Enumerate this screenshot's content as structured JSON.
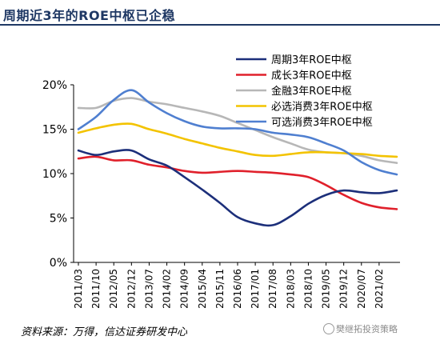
{
  "title": "周期近3年的ROE中枢已企稳",
  "source": "资料来源：万得，信达证券研发中心",
  "watermark": "樊继拓投资策略",
  "colors": {
    "title": "#1f3864",
    "cyclical": "#1c2f7a",
    "growth": "#e0202b",
    "financial": "#b7b7b7",
    "consumer_staples": "#f3c300",
    "consumer_discretionary": "#4f7fd0"
  },
  "chart_data": {
    "type": "line",
    "xlabel": "",
    "ylabel": "",
    "ylim": [
      0,
      20
    ],
    "yticks": [
      0,
      5,
      10,
      15,
      20
    ],
    "ytick_labels": [
      "0%",
      "5%",
      "10%",
      "15%",
      "20%"
    ],
    "grid": false,
    "legend": "top-right",
    "x_start": "2011/03",
    "x_tick_labels": [
      "2011/03",
      "2011/10",
      "2012/05",
      "2012/12",
      "2013/07",
      "2014/02",
      "2014/09",
      "2015/04",
      "2015/11",
      "2016/06",
      "2017/01",
      "2017/08",
      "2018/03",
      "2018/10",
      "2019/05",
      "2019/12",
      "2020/07",
      "2021/02"
    ],
    "x": [
      "2011/03",
      "2011/10",
      "2012/05",
      "2012/12",
      "2013/07",
      "2014/02",
      "2014/09",
      "2015/04",
      "2015/11",
      "2016/06",
      "2017/01",
      "2017/08",
      "2018/03",
      "2018/10",
      "2019/05",
      "2019/12",
      "2020/07",
      "2021/02",
      "2021/06"
    ],
    "series": [
      {
        "name": "周期3年ROE中枢",
        "color_key": "cyclical",
        "values": [
          12.6,
          12.1,
          12.5,
          12.6,
          11.6,
          10.9,
          9.6,
          8.2,
          6.7,
          5.1,
          4.4,
          4.2,
          5.2,
          6.6,
          7.6,
          8.1,
          7.9,
          7.8,
          8.1
        ]
      },
      {
        "name": "成长3年ROE中枢",
        "color_key": "growth",
        "values": [
          11.7,
          11.9,
          11.5,
          11.5,
          11.0,
          10.7,
          10.3,
          10.1,
          10.2,
          10.3,
          10.2,
          10.1,
          9.9,
          9.6,
          8.7,
          7.6,
          6.7,
          6.2,
          6.0
        ]
      },
      {
        "name": "金融3年ROE中枢",
        "color_key": "financial",
        "values": [
          17.4,
          17.4,
          18.2,
          18.5,
          18.1,
          17.8,
          17.4,
          17.0,
          16.5,
          15.7,
          14.9,
          14.1,
          13.4,
          12.7,
          12.4,
          12.3,
          12.0,
          11.5,
          11.2
        ]
      },
      {
        "name": "必选消费3年ROE中枢",
        "color_key": "consumer_staples",
        "values": [
          14.6,
          15.1,
          15.5,
          15.6,
          15.0,
          14.5,
          13.9,
          13.4,
          12.9,
          12.5,
          12.1,
          12.0,
          12.2,
          12.4,
          12.4,
          12.3,
          12.2,
          12.0,
          11.9
        ]
      },
      {
        "name": "可选消费3年ROE中枢",
        "color_key": "consumer_discretionary",
        "values": [
          15.0,
          16.4,
          18.3,
          19.4,
          18.0,
          16.8,
          15.9,
          15.3,
          15.1,
          15.1,
          15.0,
          14.6,
          14.4,
          14.1,
          13.4,
          12.6,
          11.3,
          10.4,
          9.9
        ]
      }
    ]
  }
}
